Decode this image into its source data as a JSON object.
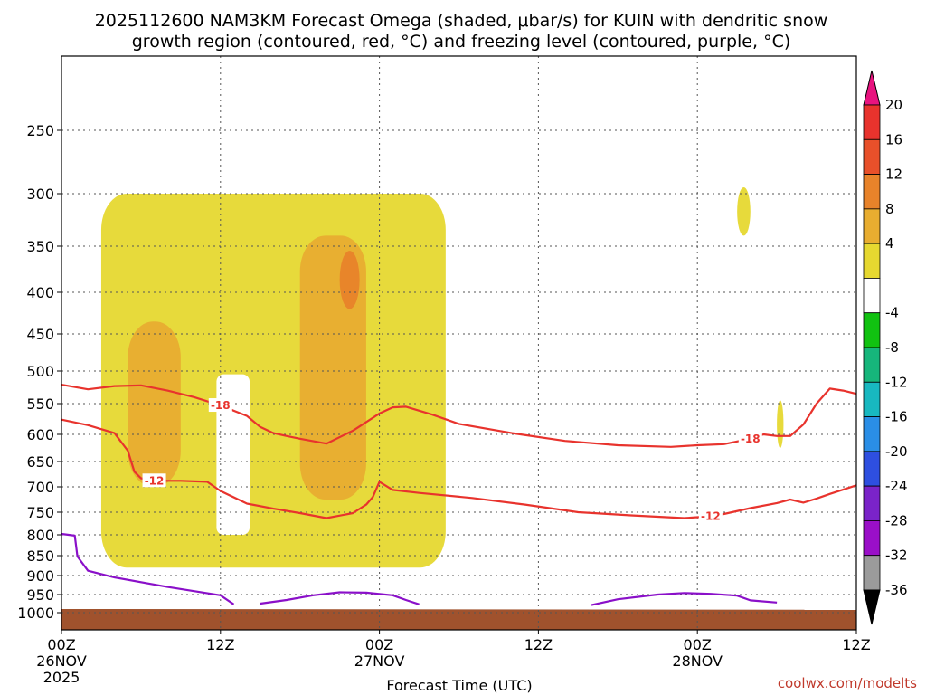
{
  "chart_data": {
    "type": "heatmap",
    "title_line1": "2025112600 NAM3KM Forecast Omega (shaded, μbar/s) for KUIN with dendritic snow",
    "title_line2": "growth region (contoured, red, °C) and freezing level (contoured, purple, °C)",
    "xlabel": "Forecast Time (UTC)",
    "ylabel": "",
    "credit": "coolwx.com/modelts",
    "x_range_hours": [
      0,
      60
    ],
    "x_ticks": [
      {
        "hour": 0,
        "line1": "00Z",
        "line2": "26NOV",
        "line3": "2025"
      },
      {
        "hour": 12,
        "line1": "12Z",
        "line2": "",
        "line3": ""
      },
      {
        "hour": 24,
        "line1": "00Z",
        "line2": "27NOV",
        "line3": ""
      },
      {
        "hour": 36,
        "line1": "12Z",
        "line2": "",
        "line3": ""
      },
      {
        "hour": 48,
        "line1": "00Z",
        "line2": "28NOV",
        "line3": ""
      },
      {
        "hour": 60,
        "line1": "12Z",
        "line2": "",
        "line3": ""
      }
    ],
    "y_ticks_hpa": [
      250,
      300,
      350,
      400,
      450,
      500,
      550,
      600,
      650,
      700,
      750,
      800,
      850,
      900,
      950,
      1000
    ],
    "colorbar": {
      "labels": [
        "20",
        "16",
        "12",
        "8",
        "4",
        "-4",
        "-8",
        "-12",
        "-16",
        "-20",
        "-24",
        "-28",
        "-32",
        "-36"
      ],
      "colors": [
        "#e8137f",
        "#e8332d",
        "#e8502a",
        "#e8832a",
        "#e8ad30",
        "#e6d830",
        "#ffffff",
        "#11c211",
        "#16b67b",
        "#18b8c0",
        "#2a8ee6",
        "#2e4fe0",
        "#7a23c9",
        "#9a0fc8",
        "#9b9b9b",
        "#000000"
      ]
    },
    "series": [
      {
        "name": "Dendritic growth -18 °C",
        "label": "-18",
        "color": "#e8332d",
        "points": [
          [
            0,
            521
          ],
          [
            2,
            528
          ],
          [
            4,
            523
          ],
          [
            6,
            522
          ],
          [
            8,
            530
          ],
          [
            10,
            540
          ],
          [
            12,
            553
          ],
          [
            14,
            570
          ],
          [
            15,
            588
          ],
          [
            16,
            598
          ],
          [
            17,
            603
          ],
          [
            18,
            608
          ],
          [
            20,
            617
          ],
          [
            22,
            594
          ],
          [
            24,
            566
          ],
          [
            25,
            556
          ],
          [
            26,
            555
          ],
          [
            28,
            568
          ],
          [
            30,
            583
          ],
          [
            34,
            598
          ],
          [
            38,
            612
          ],
          [
            42,
            620
          ],
          [
            46,
            623
          ],
          [
            48,
            620
          ],
          [
            50,
            618
          ],
          [
            52,
            608
          ],
          [
            53,
            600
          ],
          [
            54,
            603
          ],
          [
            55,
            603
          ],
          [
            56,
            584
          ],
          [
            57,
            550
          ],
          [
            58,
            527
          ],
          [
            59,
            530
          ],
          [
            60,
            535
          ]
        ]
      },
      {
        "name": "Dendritic growth -12 °C",
        "label": "-12",
        "color": "#e8332d",
        "points": [
          [
            0,
            576
          ],
          [
            2,
            585
          ],
          [
            4,
            598
          ],
          [
            5,
            630
          ],
          [
            5.5,
            670
          ],
          [
            6,
            683
          ],
          [
            7,
            688
          ],
          [
            9,
            688
          ],
          [
            11,
            690
          ],
          [
            12,
            708
          ],
          [
            14,
            733
          ],
          [
            16,
            743
          ],
          [
            18,
            752
          ],
          [
            20,
            763
          ],
          [
            22,
            752
          ],
          [
            23,
            735
          ],
          [
            23.5,
            720
          ],
          [
            24,
            690
          ],
          [
            25,
            706
          ],
          [
            27,
            712
          ],
          [
            31,
            722
          ],
          [
            35,
            735
          ],
          [
            39,
            750
          ],
          [
            43,
            757
          ],
          [
            47,
            763
          ],
          [
            49,
            759
          ],
          [
            50,
            754
          ],
          [
            52,
            742
          ],
          [
            54,
            732
          ],
          [
            55,
            725
          ],
          [
            56,
            731
          ],
          [
            57,
            723
          ],
          [
            58,
            714
          ],
          [
            60,
            697
          ]
        ]
      },
      {
        "name": "Freezing level 0 °C",
        "label": "",
        "color": "#8a10c9",
        "segments": [
          [
            [
              0,
              798
            ],
            [
              1,
              802
            ],
            [
              1.2,
              852
            ],
            [
              2,
              888
            ],
            [
              4,
              905
            ],
            [
              8,
              930
            ],
            [
              12,
              952
            ],
            [
              13,
              977
            ]
          ],
          [
            [
              15,
              975
            ],
            [
              17,
              965
            ],
            [
              19,
              952
            ],
            [
              21,
              944
            ],
            [
              23,
              945
            ],
            [
              25,
              952
            ],
            [
              26,
              965
            ],
            [
              27,
              977
            ]
          ],
          [
            [
              40,
              979
            ],
            [
              42,
              963
            ],
            [
              45,
              950
            ],
            [
              47,
              946
            ],
            [
              49,
              948
            ],
            [
              51,
              953
            ],
            [
              52,
              966
            ],
            [
              54,
              972
            ]
          ]
        ]
      },
      {
        "name": "Omega shading",
        "label": "",
        "color": "#e6d830",
        "regions": [
          {
            "level": "4-8",
            "color": "#e6d830",
            "hours": [
              3,
              29
            ],
            "hpa": [
              300,
              880
            ]
          },
          {
            "level": "8-12",
            "color": "#e8ad30",
            "hours": [
              5,
              9
            ],
            "hpa": [
              435,
              700
            ]
          },
          {
            "level": "8-12",
            "color": "#e8ad30",
            "hours": [
              18,
              23
            ],
            "hpa": [
              340,
              725
            ]
          },
          {
            "level": "12-16",
            "color": "#e8832a",
            "hours": [
              21,
              22.5
            ],
            "hpa": [
              355,
              420
            ]
          },
          {
            "level": "4-8",
            "color": "#e6d830",
            "hours": [
              51,
              52
            ],
            "hpa": [
              295,
              340
            ]
          },
          {
            "level": "4-8",
            "color": "#e6d830",
            "hours": [
              54,
              54.5
            ],
            "hpa": [
              545,
              625
            ]
          }
        ]
      }
    ],
    "terrain": {
      "color": "#a0522d",
      "surface_hpa": 1000
    }
  }
}
